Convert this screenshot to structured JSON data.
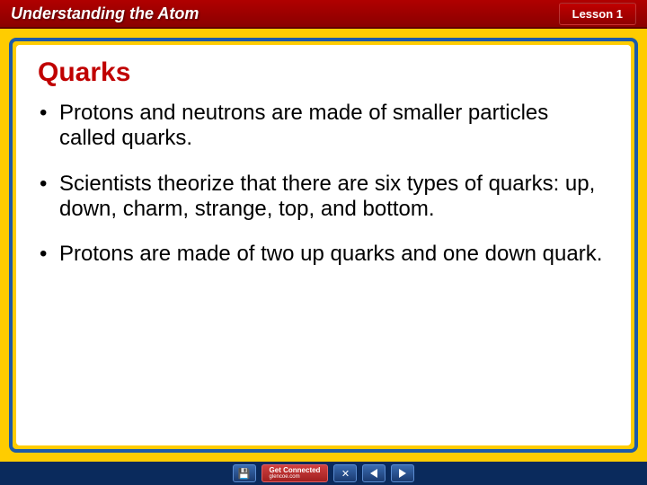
{
  "header": {
    "title": "Understanding the Atom",
    "lesson_label": "Lesson 1"
  },
  "slide": {
    "title": "Quarks",
    "bullets": [
      "Protons and neutrons are made of smaller particles called quarks.",
      "Scientists theorize that there are six types of quarks: up, down, charm, strange, top, and bottom.",
      "Protons are made of two up quarks and one down quark."
    ]
  },
  "nav": {
    "connect_line1": "Get Connected",
    "connect_line2": "glencoe.com",
    "close_symbol": "✕",
    "disk_symbol": "💾"
  },
  "colors": {
    "frame_yellow": "#ffcc00",
    "border_blue": "#1e5aa8",
    "title_red": "#c00000",
    "header_red": "#8a0000",
    "bottom_navy": "#0a2a5c"
  }
}
